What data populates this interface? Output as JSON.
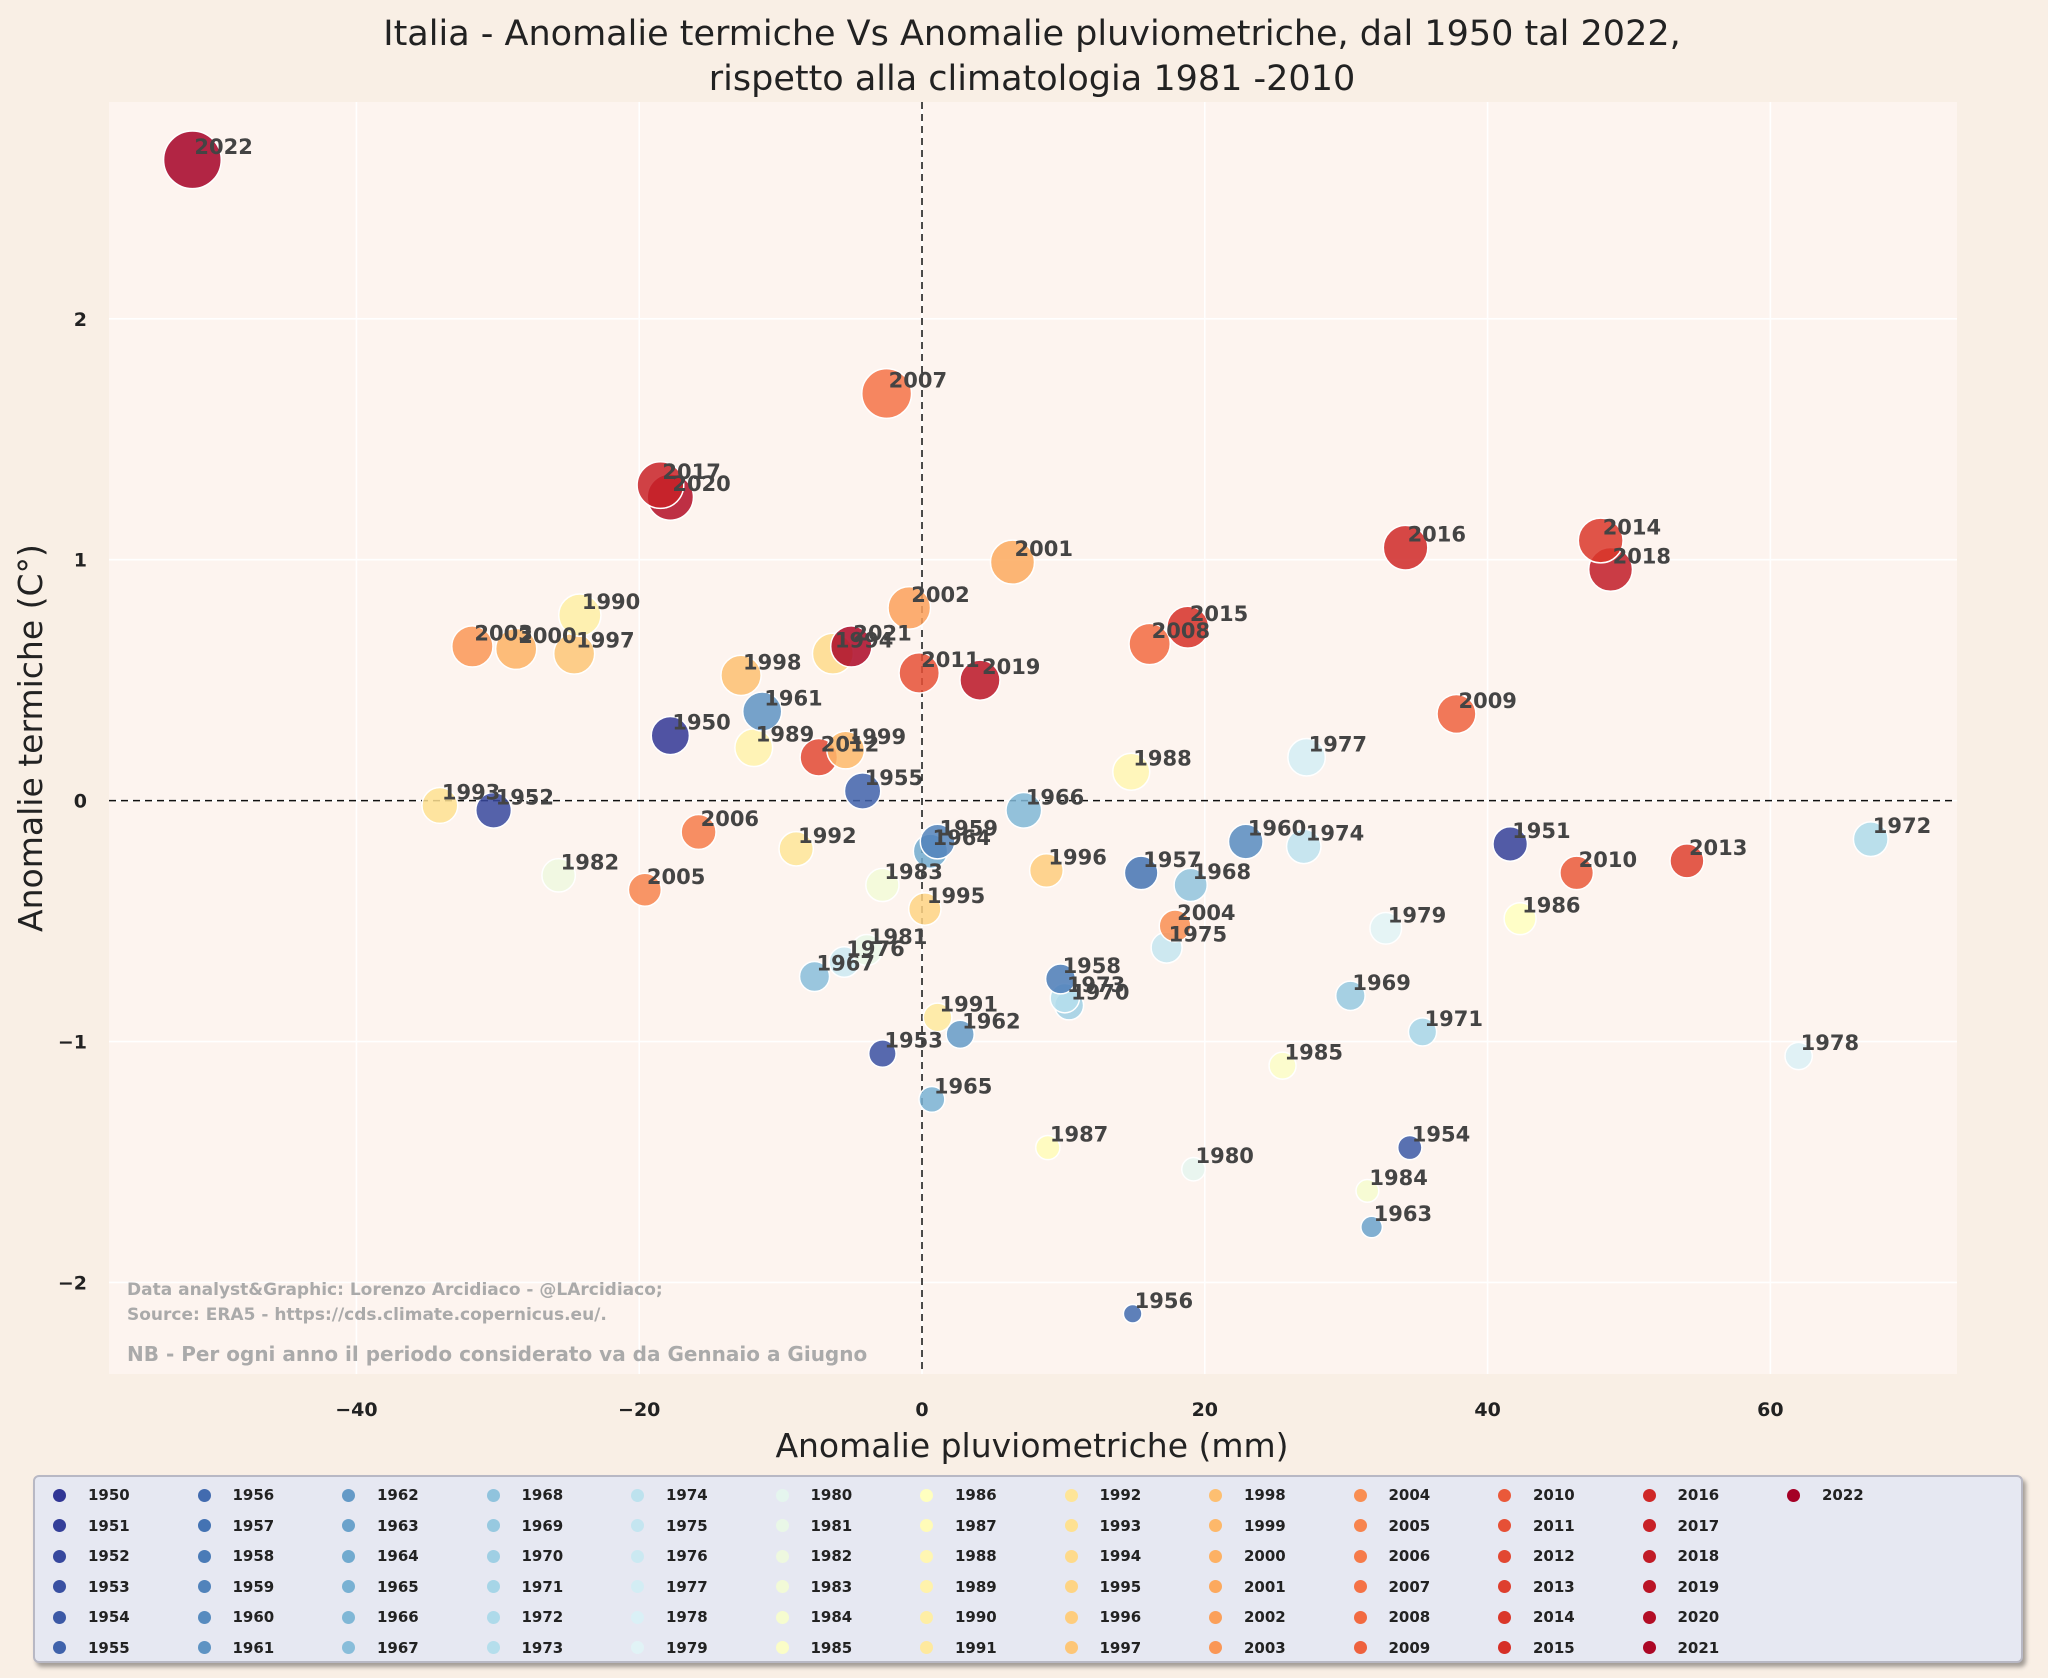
{
  "chart_data": {
    "type": "scatter",
    "title": [
      "Italia - Anomalie termiche Vs Anomalie pluviometriche, dal 1950 tal 2022,",
      "rispetto alla climatologia 1981 -2010"
    ],
    "xlabel": "Anomalie pluviometriche (mm)",
    "ylabel": "Anomalie termiche (C°)",
    "xlim": [
      -57.5,
      73.2
    ],
    "ylim": [
      -2.38,
      2.9
    ],
    "xticks": [
      -40,
      -20,
      0,
      20,
      40,
      60
    ],
    "xtick_labels": [
      "−40",
      "−20",
      "0",
      "20",
      "40",
      "60"
    ],
    "yticks": [
      -2,
      -1,
      0,
      1,
      2
    ],
    "ytick_labels": [
      "−2",
      "−1",
      "0",
      "1",
      "2"
    ],
    "grid": true,
    "reference_lines": {
      "x": 0,
      "y": 0,
      "style": "dashed"
    },
    "colormap": "RdYlBu_r",
    "colors": [
      "#313695",
      "#4575b4",
      "#74add1",
      "#abd9e9",
      "#e0f3f8",
      "#ffffbf",
      "#fee090",
      "#fdae61",
      "#f46d43",
      "#d73027",
      "#a50026"
    ],
    "marker_size": "increases with temperature anomaly",
    "legend_position": "bottom",
    "points": [
      {
        "year": 1950,
        "x": -17.8,
        "y": 0.27
      },
      {
        "year": 1951,
        "x": 41.6,
        "y": -0.18
      },
      {
        "year": 1952,
        "x": -30.3,
        "y": -0.04
      },
      {
        "year": 1953,
        "x": -2.8,
        "y": -1.05
      },
      {
        "year": 1954,
        "x": 34.5,
        "y": -1.44
      },
      {
        "year": 1955,
        "x": -4.2,
        "y": 0.04
      },
      {
        "year": 1956,
        "x": 14.9,
        "y": -2.13
      },
      {
        "year": 1957,
        "x": 15.5,
        "y": -0.3
      },
      {
        "year": 1958,
        "x": 9.8,
        "y": -0.74
      },
      {
        "year": 1959,
        "x": 1.1,
        "y": -0.17
      },
      {
        "year": 1960,
        "x": 22.9,
        "y": -0.17
      },
      {
        "year": 1961,
        "x": -11.3,
        "y": 0.37
      },
      {
        "year": 1962,
        "x": 2.7,
        "y": -0.97
      },
      {
        "year": 1963,
        "x": 31.8,
        "y": -1.77
      },
      {
        "year": 1964,
        "x": 0.6,
        "y": -0.21
      },
      {
        "year": 1965,
        "x": 0.7,
        "y": -1.24
      },
      {
        "year": 1966,
        "x": 7.2,
        "y": -0.04
      },
      {
        "year": 1967,
        "x": -7.6,
        "y": -0.73
      },
      {
        "year": 1968,
        "x": 19.0,
        "y": -0.35
      },
      {
        "year": 1969,
        "x": 30.3,
        "y": -0.81
      },
      {
        "year": 1970,
        "x": 10.4,
        "y": -0.85
      },
      {
        "year": 1971,
        "x": 35.4,
        "y": -0.96
      },
      {
        "year": 1972,
        "x": 67.1,
        "y": -0.16
      },
      {
        "year": 1973,
        "x": 10.1,
        "y": -0.82
      },
      {
        "year": 1974,
        "x": 27.0,
        "y": -0.19
      },
      {
        "year": 1975,
        "x": 17.3,
        "y": -0.61
      },
      {
        "year": 1976,
        "x": -5.5,
        "y": -0.67
      },
      {
        "year": 1977,
        "x": 27.2,
        "y": 0.18
      },
      {
        "year": 1978,
        "x": 62.0,
        "y": -1.06
      },
      {
        "year": 1979,
        "x": 32.8,
        "y": -0.53
      },
      {
        "year": 1980,
        "x": 19.2,
        "y": -1.53
      },
      {
        "year": 1981,
        "x": -3.9,
        "y": -0.62
      },
      {
        "year": 1982,
        "x": -25.7,
        "y": -0.31
      },
      {
        "year": 1983,
        "x": -2.8,
        "y": -0.35
      },
      {
        "year": 1984,
        "x": 31.5,
        "y": -1.62
      },
      {
        "year": 1985,
        "x": 25.5,
        "y": -1.1
      },
      {
        "year": 1986,
        "x": 42.3,
        "y": -0.49
      },
      {
        "year": 1987,
        "x": 8.9,
        "y": -1.44
      },
      {
        "year": 1988,
        "x": 14.8,
        "y": 0.12
      },
      {
        "year": 1989,
        "x": -11.9,
        "y": 0.22
      },
      {
        "year": 1990,
        "x": -24.2,
        "y": 0.77
      },
      {
        "year": 1991,
        "x": 1.1,
        "y": -0.9
      },
      {
        "year": 1992,
        "x": -8.9,
        "y": -0.2
      },
      {
        "year": 1993,
        "x": -34.1,
        "y": -0.02
      },
      {
        "year": 1994,
        "x": -6.3,
        "y": 0.61
      },
      {
        "year": 1995,
        "x": 0.2,
        "y": -0.45
      },
      {
        "year": 1996,
        "x": 8.8,
        "y": -0.29
      },
      {
        "year": 1997,
        "x": -24.6,
        "y": 0.61
      },
      {
        "year": 1998,
        "x": -12.8,
        "y": 0.52
      },
      {
        "year": 1999,
        "x": -5.4,
        "y": 0.21
      },
      {
        "year": 2000,
        "x": -28.7,
        "y": 0.63
      },
      {
        "year": 2001,
        "x": 6.4,
        "y": 0.99
      },
      {
        "year": 2002,
        "x": -0.9,
        "y": 0.8
      },
      {
        "year": 2003,
        "x": -31.8,
        "y": 0.64
      },
      {
        "year": 2004,
        "x": 17.9,
        "y": -0.52
      },
      {
        "year": 2005,
        "x": -19.6,
        "y": -0.37
      },
      {
        "year": 2006,
        "x": -15.8,
        "y": -0.13
      },
      {
        "year": 2007,
        "x": -2.5,
        "y": 1.69
      },
      {
        "year": 2008,
        "x": 16.1,
        "y": 0.65
      },
      {
        "year": 2009,
        "x": 37.8,
        "y": 0.36
      },
      {
        "year": 2010,
        "x": 46.3,
        "y": -0.3
      },
      {
        "year": 2011,
        "x": -0.2,
        "y": 0.53
      },
      {
        "year": 2012,
        "x": -7.3,
        "y": 0.18
      },
      {
        "year": 2013,
        "x": 54.1,
        "y": -0.25
      },
      {
        "year": 2014,
        "x": 48.0,
        "y": 1.08
      },
      {
        "year": 2015,
        "x": 18.8,
        "y": 0.72
      },
      {
        "year": 2016,
        "x": 34.2,
        "y": 1.05
      },
      {
        "year": 2017,
        "x": -18.5,
        "y": 1.31
      },
      {
        "year": 2018,
        "x": 48.7,
        "y": 0.96
      },
      {
        "year": 2019,
        "x": 4.1,
        "y": 0.5
      },
      {
        "year": 2020,
        "x": -17.8,
        "y": 1.26
      },
      {
        "year": 2021,
        "x": -5.0,
        "y": 0.64
      },
      {
        "year": 2022,
        "x": -51.6,
        "y": 2.66
      }
    ]
  },
  "credits": [
    "Data analyst&Graphic: Lorenzo Arcidiaco - @LArcidiaco;",
    "Source: ERA5 - https://cds.climate.copernicus.eu/."
  ],
  "note": "NB - Per ogni anno il periodo considerato va da Gennaio a Giugno"
}
